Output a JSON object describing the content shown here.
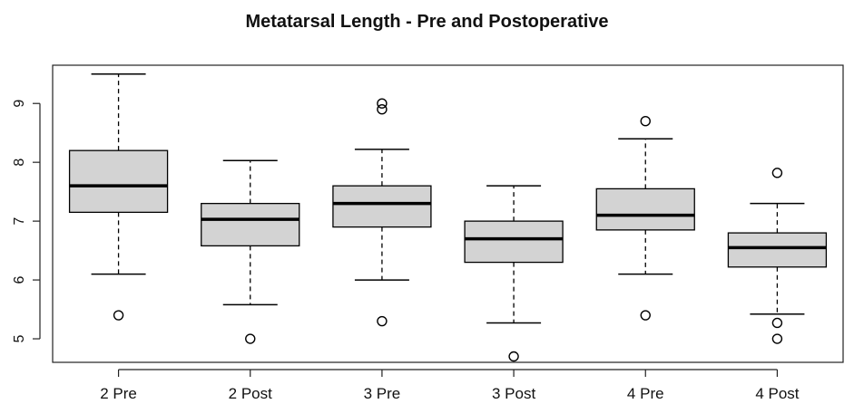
{
  "chart_data": {
    "type": "boxplot",
    "title": "Metatarsal Length - Pre and Postoperative",
    "xlabel": "",
    "ylabel": "",
    "categories": [
      "2 Pre",
      "2 Post",
      "3 Pre",
      "3 Post",
      "4 Pre",
      "4 Post"
    ],
    "y_ticks": [
      5,
      6,
      7,
      8,
      9
    ],
    "ylim": [
      4.6,
      9.65
    ],
    "boxes": [
      {
        "name": "2 Pre",
        "whisker_low": 6.1,
        "q1": 7.15,
        "median": 7.6,
        "q3": 8.2,
        "whisker_high": 9.5,
        "outliers": [
          5.4
        ]
      },
      {
        "name": "2 Post",
        "whisker_low": 5.58,
        "q1": 6.58,
        "median": 7.03,
        "q3": 7.3,
        "whisker_high": 8.03,
        "outliers": [
          5.0
        ]
      },
      {
        "name": "3 Pre",
        "whisker_low": 6.0,
        "q1": 6.9,
        "median": 7.3,
        "q3": 7.6,
        "whisker_high": 8.22,
        "outliers": [
          5.3,
          8.9,
          9.0
        ]
      },
      {
        "name": "3 Post",
        "whisker_low": 5.27,
        "q1": 6.3,
        "median": 6.7,
        "q3": 7.0,
        "whisker_high": 7.6,
        "outliers": [
          4.7
        ]
      },
      {
        "name": "4 Pre",
        "whisker_low": 6.1,
        "q1": 6.85,
        "median": 7.1,
        "q3": 7.55,
        "whisker_high": 8.4,
        "outliers": [
          5.4,
          8.7
        ]
      },
      {
        "name": "4 Post",
        "whisker_low": 5.42,
        "q1": 6.22,
        "median": 6.55,
        "q3": 6.8,
        "whisker_high": 7.3,
        "outliers": [
          5.0,
          5.27,
          7.82
        ]
      }
    ],
    "colors": {
      "box_fill": "#d3d3d3",
      "stroke": "#000000"
    },
    "grid": false,
    "legend": "none"
  }
}
